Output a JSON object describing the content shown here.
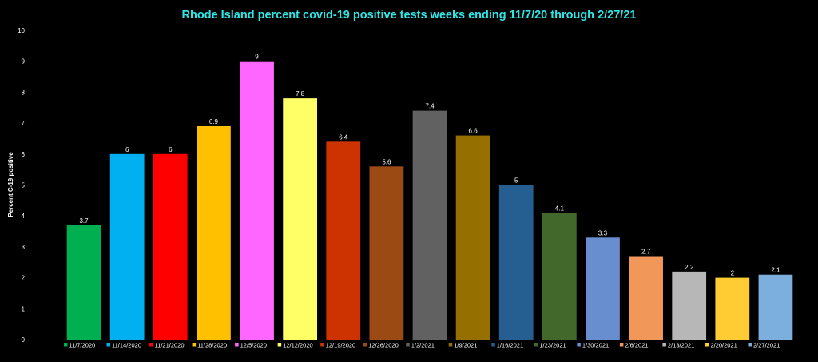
{
  "chart_data": {
    "type": "bar",
    "title": "Rhode Island percent covid-19 positive tests weeks ending 11/7/20 through 2/27/21",
    "ylabel": "Percent C-19 positive",
    "xlabel": "",
    "ylim": [
      0,
      10
    ],
    "yticks": [
      "0",
      "1",
      "2",
      "3",
      "4",
      "5",
      "6",
      "7",
      "8",
      "9",
      "10"
    ],
    "grid": false,
    "legend": "bottom",
    "series": [
      {
        "name": "11/7/2020",
        "value": 3.7,
        "label": "3.7",
        "color": "#00b050"
      },
      {
        "name": "11/14/2020",
        "value": 6,
        "label": "6",
        "color": "#00b0f0"
      },
      {
        "name": "11/21/2020",
        "value": 6,
        "label": "6",
        "color": "#ff0000"
      },
      {
        "name": "11/28/2020",
        "value": 6.9,
        "label": "6.9",
        "color": "#ffc000"
      },
      {
        "name": "12/5/2020",
        "value": 9,
        "label": "9",
        "color": "#ff66ff"
      },
      {
        "name": "12/12/2020",
        "value": 7.8,
        "label": "7.8",
        "color": "#ffff66"
      },
      {
        "name": "12/19/2020",
        "value": 6.4,
        "label": "6.4",
        "color": "#cc3300"
      },
      {
        "name": "12/26/2020",
        "value": 5.6,
        "label": "5.6",
        "color": "#9c4a14"
      },
      {
        "name": "1/2/2021",
        "value": 7.4,
        "label": "7.4",
        "color": "#616161"
      },
      {
        "name": "1/9/2021",
        "value": 6.6,
        "label": "6.6",
        "color": "#957000"
      },
      {
        "name": "1/16/2021",
        "value": 5,
        "label": "5",
        "color": "#255e91"
      },
      {
        "name": "1/23/2021",
        "value": 4.1,
        "label": "4.1",
        "color": "#43682b"
      },
      {
        "name": "1/30/2021",
        "value": 3.3,
        "label": "3.3",
        "color": "#698ed0"
      },
      {
        "name": "2/6/2021",
        "value": 2.7,
        "label": "2.7",
        "color": "#f1975a"
      },
      {
        "name": "2/13/2021",
        "value": 2.2,
        "label": "2.2",
        "color": "#b7b7b7"
      },
      {
        "name": "2/20/2021",
        "value": 2,
        "label": "2",
        "color": "#ffcd33"
      },
      {
        "name": "2/27/2021",
        "value": 2.1,
        "label": "2.1",
        "color": "#7cafdd"
      }
    ]
  }
}
